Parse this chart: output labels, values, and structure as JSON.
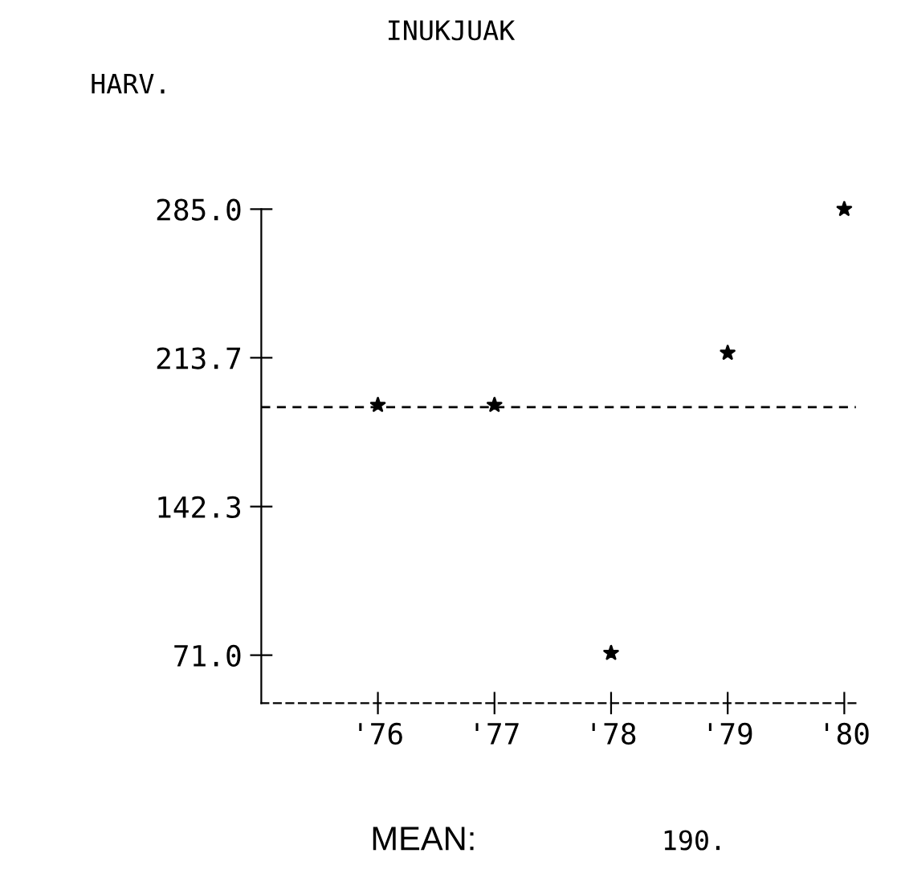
{
  "chart_data": {
    "type": "scatter",
    "title": "INUKJUAK",
    "ylabel": "HARV.",
    "categories": [
      "'76",
      "'77",
      "'78",
      "'79",
      "'80"
    ],
    "series": [
      {
        "color": "#000000",
        "values": [
          191,
          191,
          72,
          216,
          285
        ]
      }
    ],
    "marker": "star",
    "ylim": [
      48,
      285
    ],
    "yticks": [
      {
        "value": 71.0,
        "label": "71.0"
      },
      {
        "value": 142.3,
        "label": "142.3"
      },
      {
        "value": 213.7,
        "label": "213.7"
      },
      {
        "value": 285.0,
        "label": "285.0"
      }
    ],
    "ref_lines": [
      {
        "axis": "y",
        "value": 190,
        "line_style": "dashed",
        "color": "#000000"
      }
    ],
    "annotations": [
      "MEAN:",
      "190."
    ],
    "grid": false,
    "legend": false
  }
}
